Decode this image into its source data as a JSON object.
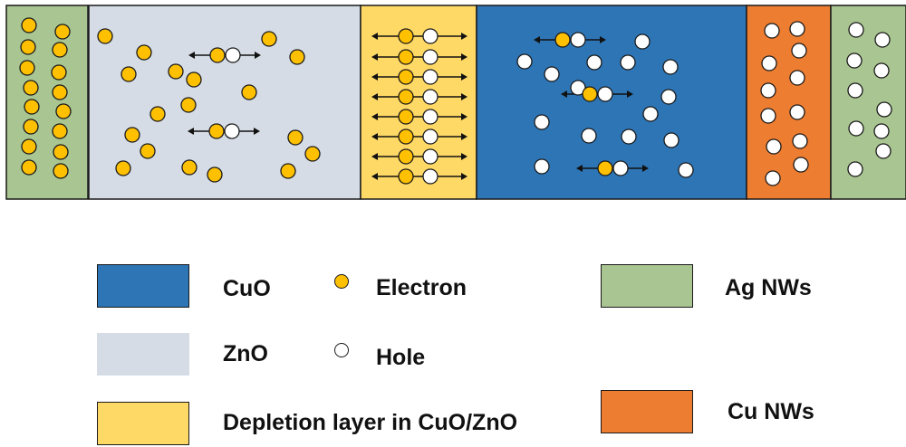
{
  "colors": {
    "cuo": "#2e75b6",
    "zno": "#d6dce5",
    "depletion": "#ffd966",
    "ag_nws": "#a9c591",
    "cu_nws": "#ed7d31",
    "electron": "#ffc000",
    "hole": "#ffffff",
    "outline": "#1a1a1a"
  },
  "legend": {
    "cuo": "CuO",
    "zno": "ZnO",
    "depletion": "Depletion layer in CuO/ZnO",
    "electron": "Electron",
    "hole": "Hole",
    "ag_nws": "Ag NWs",
    "cu_nws": "Cu NWs"
  },
  "device": {
    "layers": [
      {
        "name": "Ag NWs",
        "color_key": "ag_nws"
      },
      {
        "name": "ZnO",
        "color_key": "zno"
      },
      {
        "name": "Depletion layer in CuO/ZnO",
        "color_key": "depletion"
      },
      {
        "name": "CuO",
        "color_key": "cuo"
      },
      {
        "name": "Cu NWs",
        "color_key": "cu_nws"
      },
      {
        "name": "Ag NWs",
        "color_key": "ag_nws"
      }
    ]
  }
}
